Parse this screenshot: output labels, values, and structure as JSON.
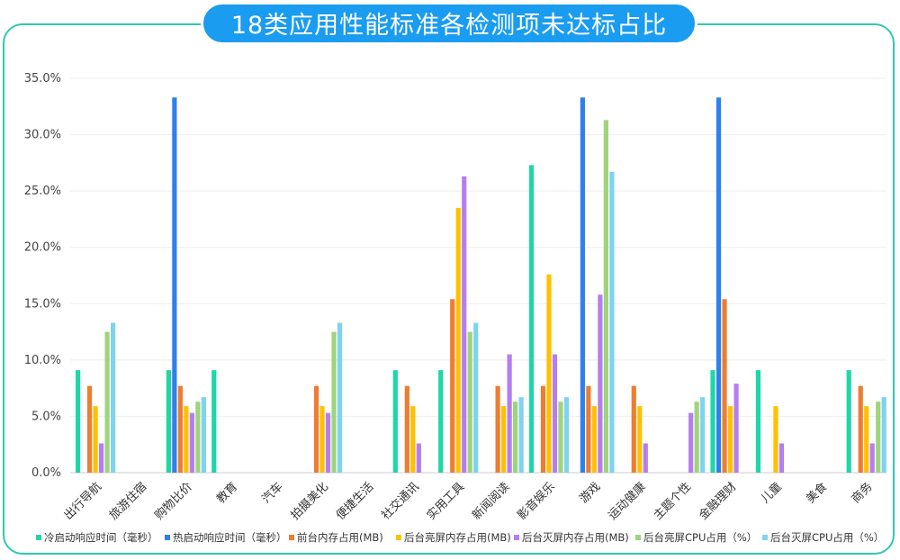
{
  "title": "18类应用性能标准各检测项未达标占比",
  "colors": {
    "frame": "#2ec9b0",
    "title_bg": "#1a9cf0",
    "grid": "#eeeeee"
  },
  "chart_data": {
    "type": "bar",
    "title": "18类应用性能标准各检测项未达标占比",
    "ylim": [
      0,
      35
    ],
    "yticks": [
      "0.0%",
      "5.0%",
      "10.0%",
      "15.0%",
      "20.0%",
      "25.0%",
      "30.0%",
      "35.0%"
    ],
    "legend_position": "bottom",
    "grid": true,
    "categories": [
      "出行导航",
      "旅游住宿",
      "购物比价",
      "教育",
      "汽车",
      "拍摄美化",
      "便捷生活",
      "社交通讯",
      "实用工具",
      "新闻阅读",
      "影音娱乐",
      "游戏",
      "运动健康",
      "主题个性",
      "金融理财",
      "儿童",
      "美食",
      "商务"
    ],
    "series": [
      {
        "name": "冷启动响应时间（毫秒）",
        "color": "#1fd6a8",
        "values": [
          9.1,
          0,
          9.1,
          9.1,
          0,
          0,
          0,
          9.1,
          9.1,
          0,
          27.3,
          0,
          0,
          0,
          9.1,
          9.1,
          0,
          9.1
        ]
      },
      {
        "name": "热启动响应时间（毫秒）",
        "color": "#2f80ed",
        "values": [
          0,
          0,
          33.3,
          0,
          0,
          0,
          0,
          0,
          0,
          0,
          0,
          33.3,
          0,
          0,
          33.3,
          0,
          0,
          0
        ]
      },
      {
        "name": "前台内存占用(MB)",
        "color": "#ee7d31",
        "values": [
          7.7,
          0,
          7.7,
          0,
          0,
          7.7,
          0,
          7.7,
          15.4,
          7.7,
          7.7,
          7.7,
          7.7,
          0,
          15.4,
          0,
          0,
          7.7
        ]
      },
      {
        "name": "后台亮屏内存占用(MB)",
        "color": "#ffc000",
        "values": [
          5.9,
          0,
          5.9,
          0,
          0,
          5.9,
          0,
          5.9,
          23.5,
          5.9,
          17.6,
          5.9,
          5.9,
          0,
          5.9,
          5.9,
          0,
          5.9
        ]
      },
      {
        "name": "后台灭屏内存占用(MB)",
        "color": "#b57ef0",
        "values": [
          2.6,
          0,
          5.3,
          0,
          0,
          5.3,
          0,
          2.6,
          26.3,
          10.5,
          10.5,
          15.8,
          2.6,
          5.3,
          7.9,
          2.6,
          0,
          2.6
        ]
      },
      {
        "name": "后台亮屏CPU占用（%）",
        "color": "#9fd47d",
        "values": [
          12.5,
          0,
          6.3,
          0,
          0,
          12.5,
          0,
          0,
          12.5,
          6.3,
          6.3,
          31.3,
          0,
          6.3,
          0,
          0,
          0,
          6.3
        ]
      },
      {
        "name": "后台灭屏CPU占用（%）",
        "color": "#7ed3f0",
        "values": [
          13.3,
          0,
          6.7,
          0,
          0,
          13.3,
          0,
          0,
          13.3,
          6.7,
          6.7,
          26.7,
          0,
          6.7,
          0,
          0,
          0,
          6.7
        ]
      }
    ]
  }
}
